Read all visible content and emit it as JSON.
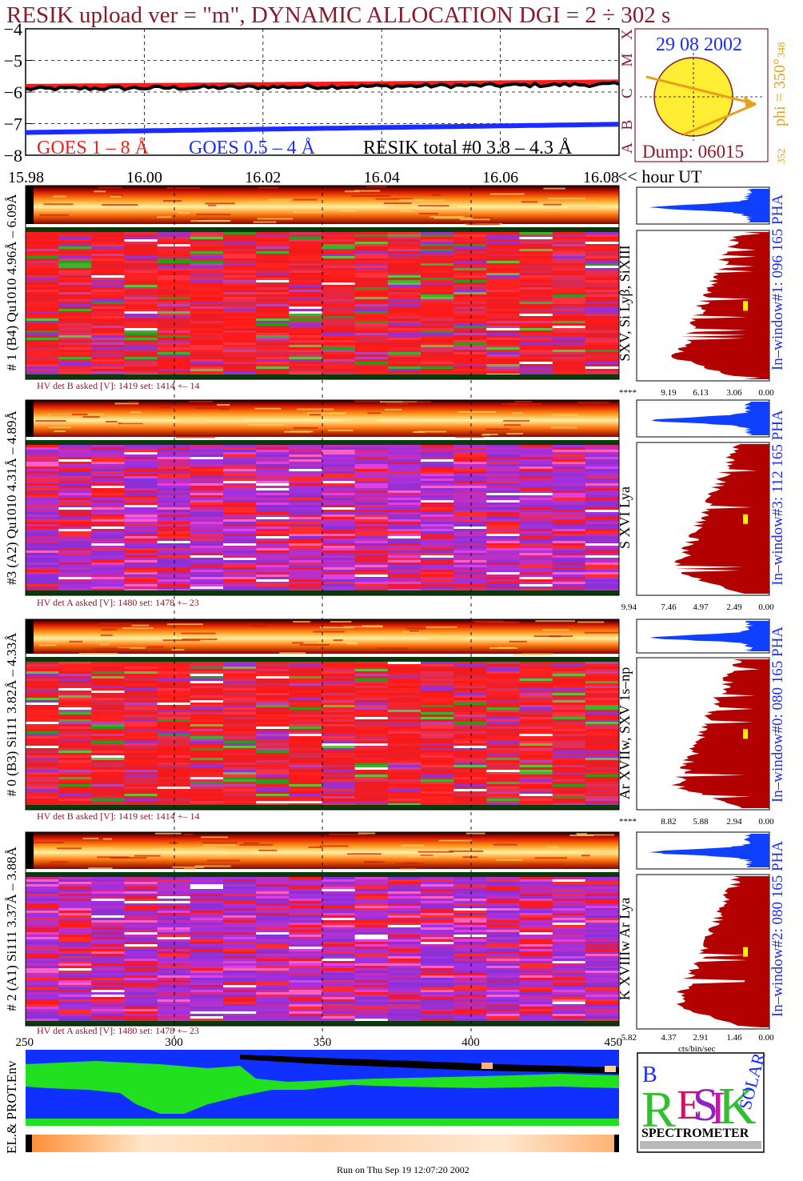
{
  "title": "RESIK upload ver = \"m\", DYNAMIC ALLOCATION  DGI =   2 ÷ 302 s",
  "footer": "Run on Thu Sep 19 12:07:20 2002",
  "colors": {
    "title": "#8b1a2b",
    "goes_long": "#ff1a1a",
    "goes_short": "#1a2cff",
    "resik_total": "#000000",
    "pha_fill": "#b30000",
    "pha_top": "#1040ff",
    "sun": "#ffee33",
    "arrow": "#e6a01a",
    "env_blue": "#1030ff",
    "env_green": "#20e020"
  },
  "goes": {
    "legend_long": "GOES 1 – 8 Å",
    "legend_short": "GOES 0.5 – 4 Å",
    "legend_resik": "RESIK total #0  3.8 – 4.3 Å",
    "class_letters": [
      "X",
      "M",
      "C",
      "B",
      "A"
    ]
  },
  "sun_panel": {
    "date": "29 08 2002",
    "dump": "Dump: 06015",
    "phi": "phi = 350°",
    "phi_top": "348",
    "phi_bottom": "352"
  },
  "time_axis_unit": "<< hour UT",
  "bin_axis_unit": "cts/bin/sec",
  "logo_text": "SPECTROMETER",
  "panels": [
    {
      "id": "p1",
      "label": "# 1 (B4) Qu1010 4.96Å – 6.09Å",
      "lines": "SXV, Si Lyβ, SiXIII",
      "hv": "HV det B asked [V]:  1419 set:  1414  +–   14",
      "window": "In–window#1:  096 165 PHA",
      "pha_ticks": [
        "****",
        "9.19",
        "6.13",
        "3.06",
        "0.00"
      ]
    },
    {
      "id": "p3",
      "label": "#3 (A2) Qu1010  4.31Å – 4.89Å",
      "lines": "S XVI Lya",
      "hv": "HV det A asked [V]:  1480 set:  1478  +–   23",
      "window": "In–window#3:  112 165 PHA",
      "pha_ticks": [
        "9.94",
        "7.46",
        "4.97",
        "2.49",
        "0.00"
      ]
    },
    {
      "id": "p0",
      "label": "# 0 (B3) Si111  3.82Å – 4.33Å",
      "lines": "Ar XVIIw,  SXV 1s–np",
      "hv": "HV det B asked [V]:  1419 set:  1414  +–   14",
      "window": "In–window#0:  080 165 PHA",
      "pha_ticks": [
        "****",
        "8.82",
        "5.88",
        "2.94",
        "0.00"
      ]
    },
    {
      "id": "p2",
      "label": "# 2 (A1) Si111  3.37Å – 3.88Å",
      "lines": "K XVIIIw   Ar Lya",
      "hv": "HV det A asked [V]:  1480 set:  1478  +–   23",
      "window": "In–window#2:  080 165 PHA",
      "pha_ticks": [
        "5.82",
        "4.37",
        "2.91",
        "1.46",
        "0.00"
      ]
    }
  ],
  "env_label": "EL.& PROT.Env",
  "chart_data": [
    {
      "type": "line",
      "title": "RESIK upload ver = \"m\", DYNAMIC ALLOCATION  DGI =   2 ÷ 302 s",
      "ylabel": "",
      "ylim": [
        -8,
        -4
      ],
      "yticks": [
        "-4",
        "-5",
        "-6",
        "-7",
        "-8"
      ],
      "xlim": [
        15.98,
        16.08
      ],
      "x": [
        15.98,
        16.08
      ],
      "series": [
        {
          "name": "GOES 1 – 8 Å",
          "values": [
            -5.82,
            -5.68
          ]
        },
        {
          "name": "GOES 0.5 – 4 Å",
          "values": [
            -7.28,
            -7.02
          ]
        },
        {
          "name": "RESIK total #0  3.8 – 4.3 Å",
          "values": [
            -5.9,
            -5.76
          ]
        }
      ],
      "grid": true
    },
    {
      "type": "heatmap",
      "title": "",
      "x_hour_ticks": [
        "15.98",
        "16.00",
        "16.02",
        "16.04",
        "16.06",
        "16.08"
      ],
      "x_bin_ticks": [
        "250",
        "300",
        "350",
        "400",
        "450"
      ],
      "xlim": [
        250,
        450
      ],
      "xlabel": "<< hour UT",
      "panels": [
        "# 1 (B4) Qu1010 4.96Å – 6.09Å",
        "#3 (A2) Qu1010  4.31Å – 4.89Å",
        "# 0 (B3) Si111  3.82Å – 4.33Å",
        "# 2 (A1) Si111  3.37Å – 3.88Å"
      ]
    }
  ]
}
